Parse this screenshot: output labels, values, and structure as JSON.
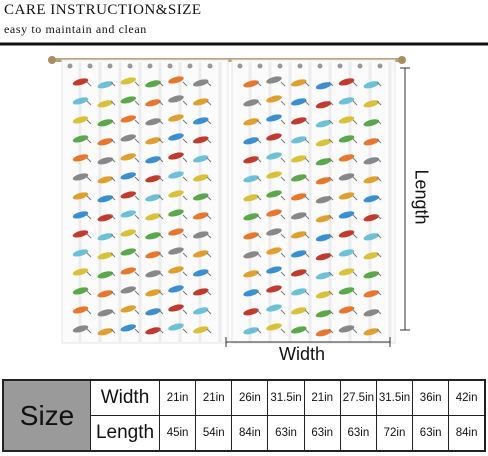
{
  "header": {
    "title": "CARE INSTRUCTION&SIZE",
    "subtitle": "easy to maintain and clean"
  },
  "dimensions": {
    "length": "Length",
    "width": "Width"
  },
  "table": {
    "size_label": "Size",
    "rows": [
      {
        "label": "Width",
        "values": [
          "21in",
          "21in",
          "26in",
          "31.5in",
          "21in",
          "27.5in",
          "31.5in",
          "36in",
          "42in"
        ]
      },
      {
        "label": "Length",
        "values": [
          "45in",
          "54in",
          "84in",
          "63in",
          "63in",
          "63in",
          "72in",
          "63in",
          "84in"
        ]
      }
    ]
  }
}
